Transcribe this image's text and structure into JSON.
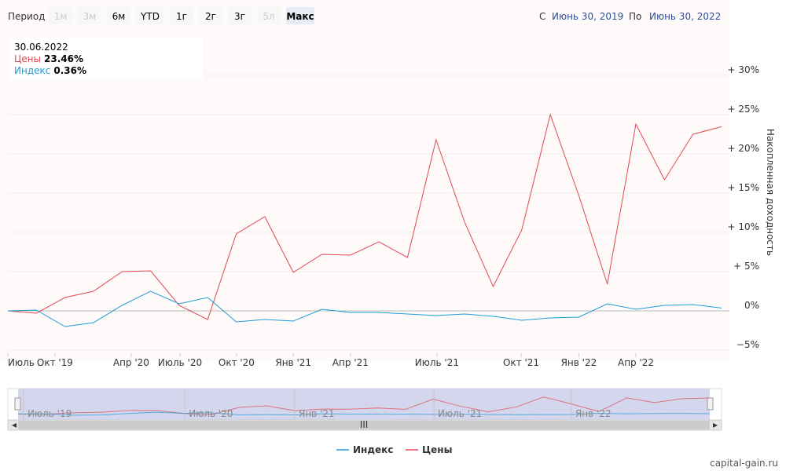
{
  "chart_data": {
    "type": "line",
    "period_label": "Период",
    "period_buttons": [
      "1м",
      "3м",
      "6м",
      "YTD",
      "1г",
      "2г",
      "3г",
      "5л",
      "Макс"
    ],
    "period_disabled": [
      true,
      true,
      false,
      false,
      false,
      false,
      false,
      true,
      false
    ],
    "period_selected": 8,
    "range": {
      "from_label": "С",
      "from": "Июнь 30, 2019",
      "to_label": "По",
      "to": "Июнь 30, 2022"
    },
    "tooltip": {
      "date": "30.06.2022",
      "values": [
        "23.46%",
        "0.36%"
      ]
    },
    "y_axis_label": "Накопленная доходность",
    "xlim": [
      0,
      25
    ],
    "xticks": [
      {
        "value": 0,
        "label": "Июль .."
      },
      {
        "value": 1.65,
        "label": "Окт '19"
      },
      {
        "value": 4.32,
        "label": "Апр '20"
      },
      {
        "value": 6.03,
        "label": "Июль '20"
      },
      {
        "value": 8.01,
        "label": "Окт '20"
      },
      {
        "value": 10,
        "label": "Янв '21"
      },
      {
        "value": 12,
        "label": "Апр '21"
      },
      {
        "value": 15.03,
        "label": "Июль '21"
      },
      {
        "value": 17.98,
        "label": "Окт '21"
      },
      {
        "value": 20,
        "label": "Янв '22"
      },
      {
        "value": 22,
        "label": "Апр '22"
      }
    ],
    "navigator_ticks": [
      {
        "value": 0.2,
        "label": "Июль '19"
      },
      {
        "value": 6.03,
        "label": "Июль '20"
      },
      {
        "value": 10,
        "label": "Янв '21"
      },
      {
        "value": 15.03,
        "label": "Июль '21"
      },
      {
        "value": 20,
        "label": "Янв '22"
      }
    ],
    "ylim": [
      -5.4,
      35.1
    ],
    "yticks": [
      {
        "value": -5,
        "label": "−5%"
      },
      {
        "value": 0,
        "label": "0%"
      },
      {
        "value": 5,
        "label": "+ 5%"
      },
      {
        "value": 10,
        "label": "+ 10%"
      },
      {
        "value": 15,
        "label": "+ 15%"
      },
      {
        "value": 20,
        "label": "+ 20%"
      },
      {
        "value": 25,
        "label": "+ 25%"
      },
      {
        "value": 30,
        "label": "+ 30%"
      }
    ],
    "grid": true,
    "series": [
      {
        "name": "Цены",
        "color": "#e0484e",
        "values": [
          0,
          -0.3,
          1.7,
          2.5,
          5.0,
          5.1,
          0.7,
          -1.1,
          9.8,
          12.0,
          4.9,
          7.2,
          7.1,
          8.8,
          6.8,
          21.8,
          11.3,
          3.1,
          10.3,
          25.0,
          14.7,
          3.4,
          23.8,
          16.7,
          22.5,
          23.46
        ]
      },
      {
        "name": "Индекс",
        "color": "#1f9bd7",
        "values": [
          0,
          0.1,
          -2.0,
          -1.5,
          0.7,
          2.5,
          0.9,
          1.7,
          -1.4,
          -1.1,
          -1.3,
          0.2,
          -0.2,
          -0.2,
          -0.4,
          -0.6,
          -0.4,
          -0.7,
          -1.2,
          -0.9,
          -0.8,
          0.9,
          0.2,
          0.7,
          0.8,
          0.36
        ]
      }
    ],
    "legend_order": [
      1,
      0
    ],
    "footer": "capital-gain.ru"
  }
}
